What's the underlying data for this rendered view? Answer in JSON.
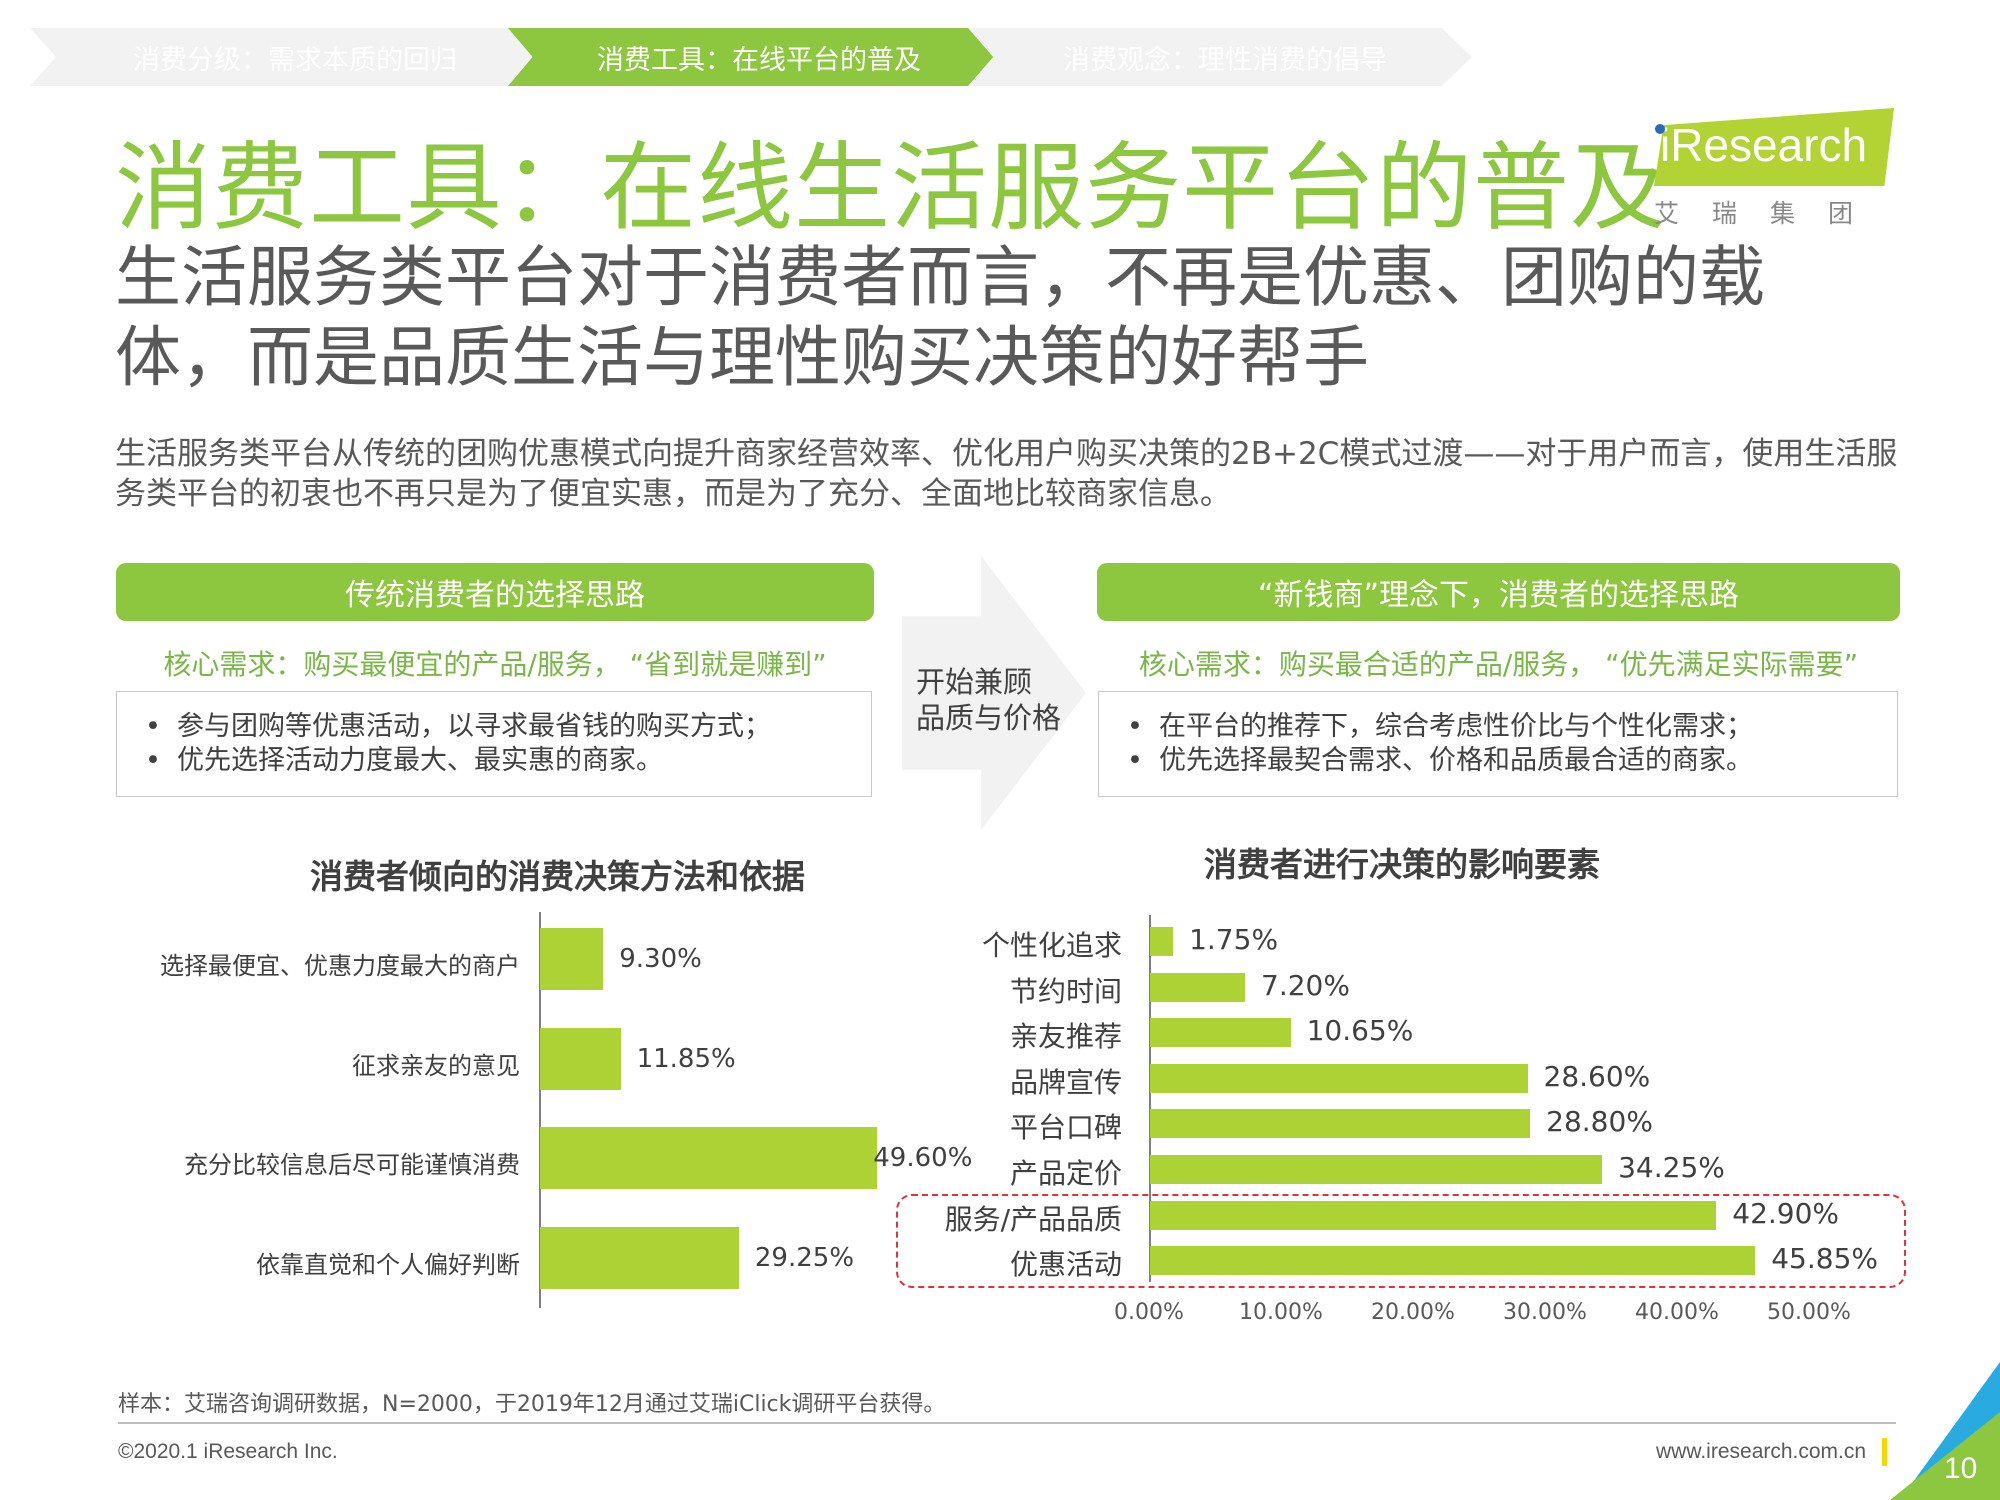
{
  "breadcrumb": [
    "消费分级：需求本质的回归",
    "消费工具：在线平台的普及",
    "消费观念：理性消费的倡导"
  ],
  "title": "消费工具：在线生活服务平台的普及",
  "logo": {
    "word": "iResearch",
    "cn": "艾瑞集团"
  },
  "subtitle": "生活服务类平台对于消费者而言，不再是优惠、团购的载体，而是品质生活与理性购买决策的好帮手",
  "description": "生活服务类平台从传统的团购优惠模式向提升商家经营效率、优化用户购买决策的2B+2C模式过渡——对于用户而言，使用生活服务类平台的初衷也不再只是为了便宜实惠，而是为了充分、全面地比较商家信息。",
  "left_panel": {
    "heading": "传统消费者的选择思路",
    "core": "核心需求：购买最便宜的产品/服务， “省到就是赚到”",
    "bullets": [
      "参与团购等优惠活动，以寻求最省钱的购买方式；",
      "优先选择活动力度最大、最实惠的商家。"
    ]
  },
  "arrow_text": [
    "开始兼顾",
    "品质与价格"
  ],
  "right_panel": {
    "heading": "“新钱商”理念下，消费者的选择思路",
    "core": "核心需求：购买最合适的产品/服务， “优先满足实际需要”",
    "bullets": [
      "在平台的推荐下，综合考虑性价比与个性化需求；",
      "优先选择最契合需求、价格和品质最合适的商家。"
    ]
  },
  "chart_data": [
    {
      "type": "bar",
      "orientation": "horizontal",
      "title": "消费者倾向的消费决策方法和依据",
      "categories": [
        "选择最便宜、优惠力度最大的商户",
        "征求亲友的意见",
        "充分比较信息后尽可能谨慎消费",
        "依靠直觉和个人偏好判断"
      ],
      "values": [
        9.3,
        11.85,
        49.6,
        29.25
      ],
      "value_labels": [
        "9.30%",
        "11.85%",
        "49.60%",
        "29.25%"
      ],
      "xlim": [
        0,
        50
      ],
      "color": "#add235"
    },
    {
      "type": "bar",
      "orientation": "horizontal",
      "title": "消费者进行决策的影响要素",
      "categories": [
        "个性化追求",
        "节约时间",
        "亲友推荐",
        "品牌宣传",
        "平台口碑",
        "产品定价",
        "服务/产品品质",
        "优惠活动"
      ],
      "values": [
        1.75,
        7.2,
        10.65,
        28.6,
        28.8,
        34.25,
        42.9,
        45.85
      ],
      "value_labels": [
        "1.75%",
        "7.20%",
        "10.65%",
        "28.60%",
        "28.80%",
        "34.25%",
        "42.90%",
        "45.85%"
      ],
      "xlim": [
        0,
        50
      ],
      "xticks": [
        "0.00%",
        "10.00%",
        "20.00%",
        "30.00%",
        "40.00%",
        "50.00%"
      ],
      "highlighted": [
        "服务/产品品质",
        "优惠活动"
      ],
      "color": "#add235",
      "highlight_color": "#e0313c"
    }
  ],
  "footer": {
    "note": "样本：艾瑞咨询调研数据，N=2000，于2019年12月通过艾瑞iClick调研平台获得。",
    "copyright": "©2020.1 iResearch Inc.",
    "website": "www.iresearch.com.cn",
    "page": "10"
  }
}
